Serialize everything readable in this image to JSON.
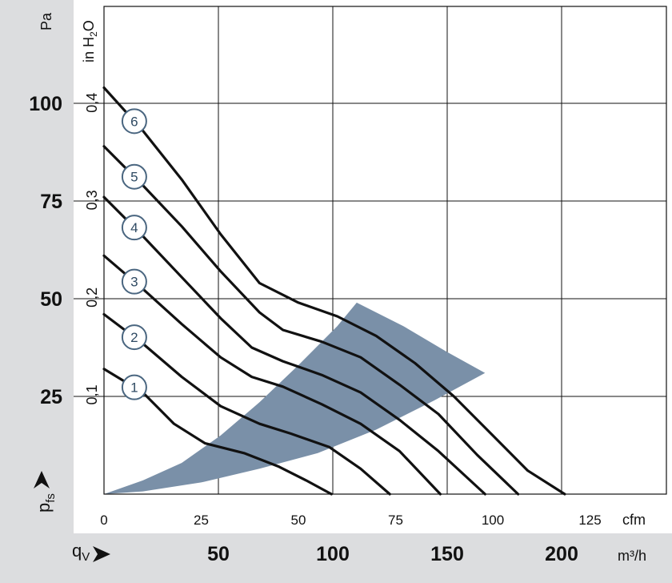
{
  "chart_data": {
    "type": "line",
    "title": "",
    "y_left": {
      "unit": "Pa",
      "ticks": [
        25,
        50,
        75,
        100
      ],
      "range": [
        0,
        125
      ]
    },
    "y_inner": {
      "unit": "in H",
      "unit_sub": "2",
      "unit_tail": "O",
      "ticks": [
        "0,1",
        "0,2",
        "0,3",
        "0,4"
      ],
      "tick_values": [
        0.1,
        0.2,
        0.3,
        0.4
      ]
    },
    "x_cfm": {
      "unit": "cfm",
      "ticks": [
        0,
        25,
        50,
        75,
        100,
        125
      ],
      "range": [
        0,
        145
      ]
    },
    "x_m3h": {
      "unit": "m³/h",
      "ticks": [
        50,
        100,
        150,
        200
      ]
    },
    "y_symbol": "p",
    "y_symbol_sub": "fs",
    "x_symbol": "q",
    "x_symbol_sub": "V",
    "series": [
      {
        "name": "1",
        "points": [
          [
            0,
            32
          ],
          [
            10,
            26
          ],
          [
            18,
            18
          ],
          [
            26,
            13
          ],
          [
            36,
            10.5
          ],
          [
            45,
            7
          ],
          [
            52,
            3.5
          ],
          [
            58.5,
            0
          ]
        ]
      },
      {
        "name": "2",
        "points": [
          [
            0,
            46
          ],
          [
            10,
            38.5
          ],
          [
            20,
            30
          ],
          [
            30,
            22.5
          ],
          [
            40,
            18
          ],
          [
            48,
            15.5
          ],
          [
            58,
            12
          ],
          [
            66,
            6.5
          ],
          [
            73.5,
            0
          ]
        ]
      },
      {
        "name": "3",
        "points": [
          [
            0,
            61
          ],
          [
            10,
            52.5
          ],
          [
            20,
            43.5
          ],
          [
            30,
            35
          ],
          [
            38,
            30
          ],
          [
            46,
            27.5
          ],
          [
            56,
            23
          ],
          [
            66,
            18
          ],
          [
            76,
            11
          ],
          [
            86.5,
            0
          ]
        ]
      },
      {
        "name": "4",
        "points": [
          [
            0,
            76
          ],
          [
            10,
            66
          ],
          [
            20,
            55.5
          ],
          [
            30,
            45
          ],
          [
            38,
            37.5
          ],
          [
            46,
            34
          ],
          [
            56,
            30.5
          ],
          [
            66,
            26
          ],
          [
            76,
            19
          ],
          [
            86,
            11
          ],
          [
            98,
            0
          ]
        ]
      },
      {
        "name": "5",
        "points": [
          [
            0,
            89
          ],
          [
            10,
            79
          ],
          [
            20,
            68.5
          ],
          [
            30,
            57
          ],
          [
            40,
            46.5
          ],
          [
            46,
            42
          ],
          [
            56,
            39
          ],
          [
            66,
            35
          ],
          [
            76,
            28
          ],
          [
            86,
            20.5
          ],
          [
            96,
            10
          ],
          [
            106.5,
            0
          ]
        ]
      },
      {
        "name": "6",
        "points": [
          [
            0,
            104
          ],
          [
            10,
            93
          ],
          [
            20,
            80.5
          ],
          [
            30,
            66.5
          ],
          [
            40,
            54
          ],
          [
            50,
            49
          ],
          [
            60,
            45.5
          ],
          [
            70,
            40.5
          ],
          [
            80,
            33.5
          ],
          [
            90,
            25
          ],
          [
            100,
            15
          ],
          [
            109,
            6
          ],
          [
            118.5,
            0
          ]
        ]
      }
    ],
    "operating_range": {
      "upper": [
        [
          0,
          0
        ],
        [
          10,
          3.5
        ],
        [
          20,
          8
        ],
        [
          30,
          15
        ],
        [
          40,
          23.5
        ],
        [
          50,
          33
        ],
        [
          60,
          43
        ],
        [
          65,
          49
        ]
      ],
      "outer": [
        [
          65,
          49
        ],
        [
          77,
          43
        ],
        [
          88,
          36.5
        ],
        [
          98,
          31
        ]
      ],
      "lower": [
        [
          98,
          31
        ],
        [
          85,
          24
        ],
        [
          70,
          16.5
        ],
        [
          55,
          10.5
        ],
        [
          40,
          6.5
        ],
        [
          25,
          3
        ],
        [
          10,
          0.7
        ],
        [
          0,
          0
        ]
      ],
      "color": "#7a90a8"
    },
    "grid": true,
    "colors": {
      "band": "#dcdddf",
      "curve": "#111111",
      "badge": "#4a6680"
    }
  }
}
